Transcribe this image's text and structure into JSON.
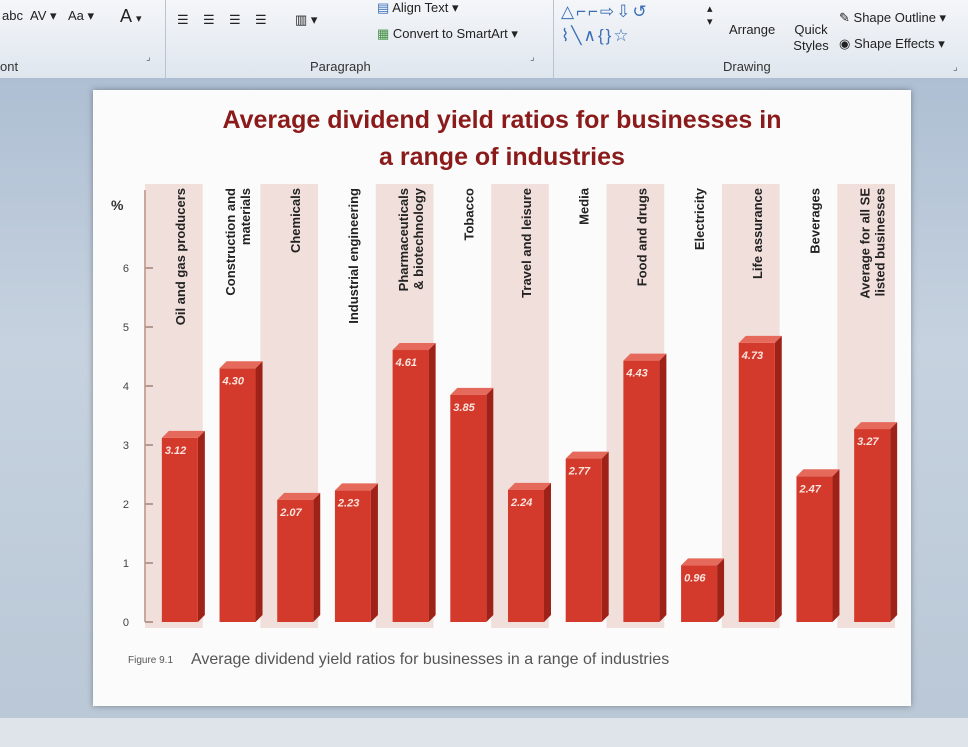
{
  "ribbon": {
    "font_group_label": "ont",
    "font_buttons": [
      "abc",
      "AV",
      "Aa",
      "A"
    ],
    "paragraph_label": "Paragraph",
    "align_text": "Align Text",
    "convert_smartart": "Convert to SmartArt",
    "arrange": "Arrange",
    "quick_styles": "Quick Styles",
    "drawing_label": "Drawing",
    "shape_outline": "Shape Outline",
    "shape_effects": "Shape Effects"
  },
  "caption": {
    "figure_no": "Figure 9.1",
    "text": "Average dividend yield ratios for businesses in a range of industries"
  },
  "chart_data": {
    "type": "bar",
    "title_line1": "Average dividend yield ratios for businesses in",
    "title_line2": "a range of industries",
    "ylabel": "%",
    "ylim": [
      0,
      7
    ],
    "yticks": [
      "0",
      "1",
      "2",
      "3",
      "4",
      "5",
      "6"
    ],
    "categories": [
      [
        "Oil and gas producers"
      ],
      [
        "Construction and",
        "materials"
      ],
      [
        "Chemicals"
      ],
      [
        "Industrial engineering"
      ],
      [
        "Pharmaceuticals",
        "& biotechnology"
      ],
      [
        "Tobacco"
      ],
      [
        "Travel and leisure"
      ],
      [
        "Media"
      ],
      [
        "Food and drugs"
      ],
      [
        "Electricity"
      ],
      [
        "Life assurance"
      ],
      [
        "Beverages"
      ],
      [
        "Average for all SE",
        "listed businesses"
      ]
    ],
    "values": [
      3.12,
      4.3,
      2.07,
      2.23,
      4.61,
      3.85,
      2.24,
      2.77,
      4.43,
      0.96,
      4.73,
      2.47,
      3.27
    ],
    "value_labels": [
      "3.12",
      "4.30",
      "2.07",
      "2.23",
      "4.61",
      "3.85",
      "2.24",
      "2.77",
      "4.43",
      "0.96",
      "4.73",
      "2.47",
      "3.27"
    ],
    "bar_color": "#d33a2c",
    "bar_side_color": "#9e2218",
    "bar_top_color": "#e66a5b",
    "stripe_color": "#ecd6cf",
    "title_color": "#8b1a1a"
  }
}
